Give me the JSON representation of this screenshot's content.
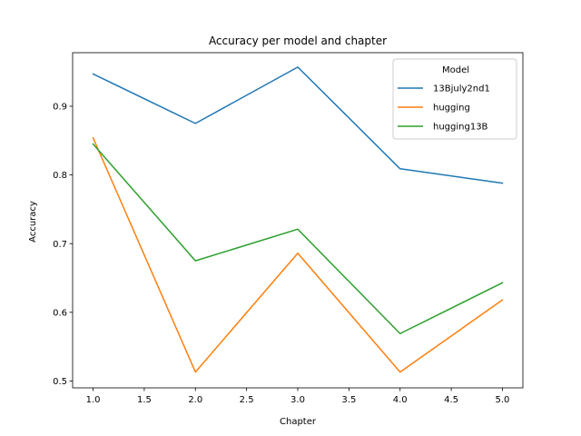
{
  "chart_data": {
    "type": "line",
    "title": "Accuracy per model and chapter",
    "xlabel": "Chapter",
    "ylabel": "Accuracy",
    "x": [
      1.0,
      2.0,
      3.0,
      4.0,
      5.0
    ],
    "xlim": [
      0.8,
      5.2
    ],
    "ylim": [
      0.49,
      0.978
    ],
    "xticks": [
      1.0,
      1.5,
      2.0,
      2.5,
      3.0,
      3.5,
      4.0,
      4.5,
      5.0
    ],
    "xtick_labels": [
      "1.0",
      "1.5",
      "2.0",
      "2.5",
      "3.0",
      "3.5",
      "4.0",
      "4.5",
      "5.0"
    ],
    "yticks": [
      0.5,
      0.6,
      0.7,
      0.8,
      0.9
    ],
    "ytick_labels": [
      "0.5",
      "0.6",
      "0.7",
      "0.8",
      "0.9"
    ],
    "grid": false,
    "legend": {
      "title": "Model",
      "placement": "upper-right"
    },
    "series": [
      {
        "name": "13Bjuly2nd1",
        "color": "#1f77b4",
        "values": [
          0.947,
          0.875,
          0.957,
          0.809,
          0.788
        ]
      },
      {
        "name": "hugging",
        "color": "#ff7f0e",
        "values": [
          0.854,
          0.513,
          0.686,
          0.513,
          0.618
        ]
      },
      {
        "name": "hugging13B",
        "color": "#2ca02c",
        "values": [
          0.845,
          0.675,
          0.721,
          0.569,
          0.643
        ]
      }
    ]
  }
}
